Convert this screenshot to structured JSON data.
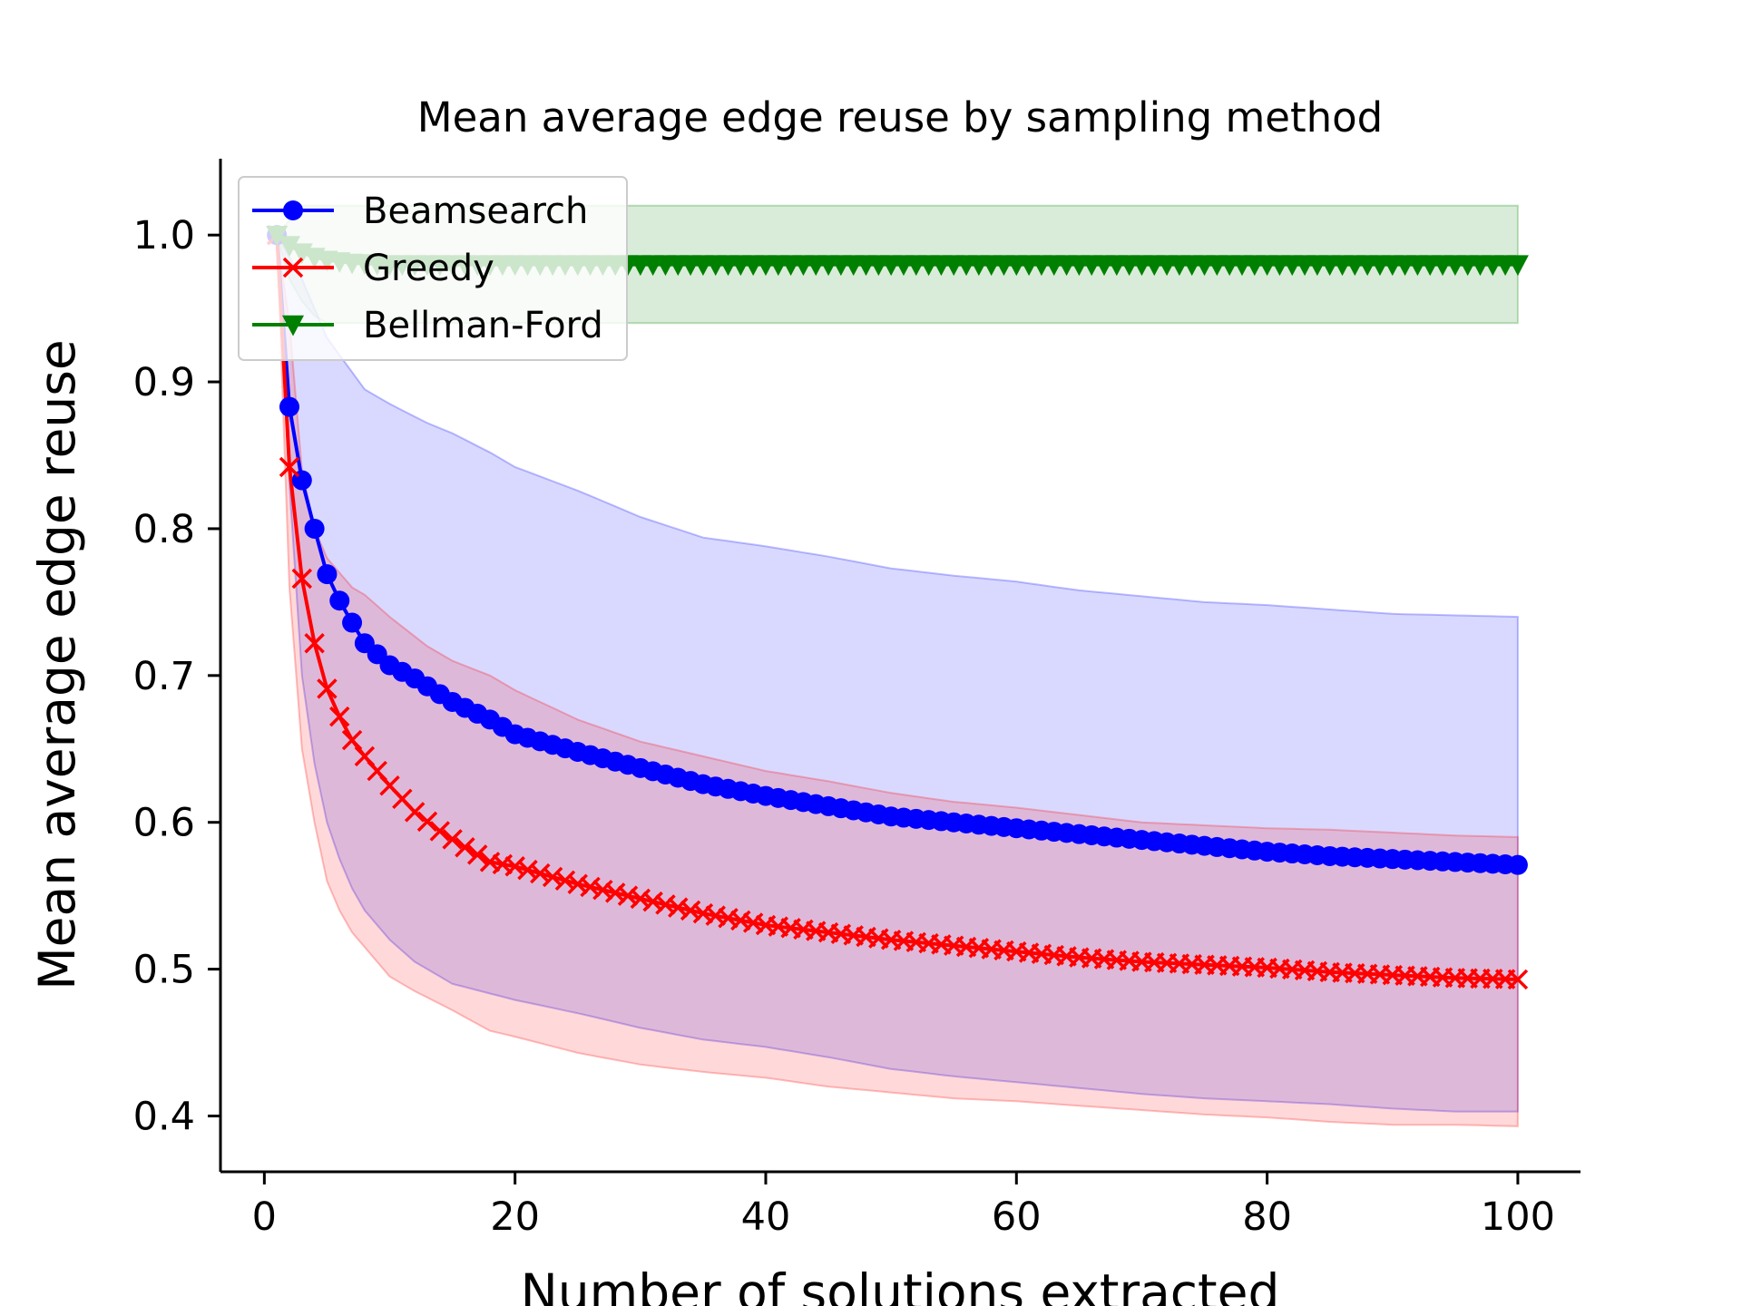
{
  "chart_data": {
    "type": "line",
    "title": "Mean average edge reuse by sampling method",
    "xlabel": "Number of solutions extracted",
    "ylabel": "Mean average edge reuse",
    "xlim": [
      -3.5,
      105
    ],
    "ylim": [
      0.362,
      1.052
    ],
    "xticks": [
      0,
      20,
      40,
      60,
      80,
      100
    ],
    "yticks": [
      0.4,
      0.5,
      0.6,
      0.7,
      0.8,
      0.9,
      1.0
    ],
    "xtick_labels": [
      "0",
      "20",
      "40",
      "60",
      "80",
      "100"
    ],
    "ytick_labels": [
      "0.4",
      "0.5",
      "0.6",
      "0.7",
      "0.8",
      "0.9",
      "1.0"
    ],
    "grid": false,
    "legend": "top-left",
    "x": {
      "start": 1,
      "end": 100
    },
    "series": [
      {
        "name": "Beamsearch",
        "color": "#0000ff",
        "marker": "circle",
        "mean_anchors": [
          [
            1,
            1.0
          ],
          [
            2,
            0.883
          ],
          [
            3,
            0.833
          ],
          [
            4,
            0.8
          ],
          [
            5,
            0.769
          ],
          [
            6,
            0.751
          ],
          [
            7,
            0.736
          ],
          [
            8,
            0.722
          ],
          [
            10,
            0.707
          ],
          [
            12,
            0.698
          ],
          [
            15,
            0.682
          ],
          [
            18,
            0.67
          ],
          [
            20,
            0.66
          ],
          [
            25,
            0.648
          ],
          [
            30,
            0.637
          ],
          [
            35,
            0.626
          ],
          [
            40,
            0.618
          ],
          [
            45,
            0.611
          ],
          [
            50,
            0.604
          ],
          [
            55,
            0.6
          ],
          [
            60,
            0.596
          ],
          [
            65,
            0.592
          ],
          [
            70,
            0.588
          ],
          [
            75,
            0.584
          ],
          [
            80,
            0.58
          ],
          [
            85,
            0.577
          ],
          [
            90,
            0.575
          ],
          [
            95,
            0.573
          ],
          [
            100,
            0.571
          ]
        ],
        "upper_anchors": [
          [
            1,
            1.0
          ],
          [
            3,
            0.97
          ],
          [
            5,
            0.93
          ],
          [
            8,
            0.895
          ],
          [
            10,
            0.885
          ],
          [
            13,
            0.872
          ],
          [
            15,
            0.865
          ],
          [
            18,
            0.852
          ],
          [
            20,
            0.842
          ],
          [
            25,
            0.826
          ],
          [
            30,
            0.808
          ],
          [
            35,
            0.794
          ],
          [
            40,
            0.788
          ],
          [
            45,
            0.781
          ],
          [
            50,
            0.773
          ],
          [
            55,
            0.768
          ],
          [
            60,
            0.764
          ],
          [
            65,
            0.758
          ],
          [
            70,
            0.754
          ],
          [
            75,
            0.75
          ],
          [
            80,
            0.748
          ],
          [
            85,
            0.745
          ],
          [
            90,
            0.742
          ],
          [
            95,
            0.741
          ],
          [
            100,
            0.74
          ]
        ],
        "lower_anchors": [
          [
            1,
            1.0
          ],
          [
            2,
            0.83
          ],
          [
            3,
            0.7
          ],
          [
            4,
            0.64
          ],
          [
            5,
            0.6
          ],
          [
            6,
            0.575
          ],
          [
            7,
            0.555
          ],
          [
            8,
            0.54
          ],
          [
            10,
            0.52
          ],
          [
            12,
            0.505
          ],
          [
            15,
            0.49
          ],
          [
            20,
            0.479
          ],
          [
            25,
            0.47
          ],
          [
            30,
            0.46
          ],
          [
            35,
            0.452
          ],
          [
            40,
            0.447
          ],
          [
            45,
            0.44
          ],
          [
            50,
            0.432
          ],
          [
            55,
            0.427
          ],
          [
            60,
            0.423
          ],
          [
            65,
            0.419
          ],
          [
            70,
            0.415
          ],
          [
            75,
            0.412
          ],
          [
            80,
            0.41
          ],
          [
            85,
            0.408
          ],
          [
            90,
            0.405
          ],
          [
            95,
            0.403
          ],
          [
            100,
            0.403
          ]
        ]
      },
      {
        "name": "Greedy",
        "color": "#ff0000",
        "marker": "x",
        "mean_anchors": [
          [
            1,
            1.0
          ],
          [
            2,
            0.842
          ],
          [
            3,
            0.766
          ],
          [
            4,
            0.722
          ],
          [
            5,
            0.691
          ],
          [
            6,
            0.672
          ],
          [
            7,
            0.656
          ],
          [
            8,
            0.645
          ],
          [
            10,
            0.625
          ],
          [
            12,
            0.607
          ],
          [
            14,
            0.594
          ],
          [
            16,
            0.583
          ],
          [
            18,
            0.573
          ],
          [
            20,
            0.57
          ],
          [
            25,
            0.558
          ],
          [
            30,
            0.548
          ],
          [
            35,
            0.538
          ],
          [
            40,
            0.53
          ],
          [
            45,
            0.525
          ],
          [
            50,
            0.52
          ],
          [
            55,
            0.516
          ],
          [
            60,
            0.512
          ],
          [
            65,
            0.508
          ],
          [
            70,
            0.505
          ],
          [
            75,
            0.503
          ],
          [
            80,
            0.501
          ],
          [
            85,
            0.498
          ],
          [
            90,
            0.496
          ],
          [
            95,
            0.494
          ],
          [
            100,
            0.493
          ]
        ],
        "upper_anchors": [
          [
            1,
            1.0
          ],
          [
            2,
            0.94
          ],
          [
            3,
            0.84
          ],
          [
            4,
            0.8
          ],
          [
            5,
            0.78
          ],
          [
            6,
            0.77
          ],
          [
            7,
            0.76
          ],
          [
            8,
            0.755
          ],
          [
            10,
            0.74
          ],
          [
            13,
            0.72
          ],
          [
            15,
            0.71
          ],
          [
            18,
            0.7
          ],
          [
            20,
            0.69
          ],
          [
            25,
            0.67
          ],
          [
            30,
            0.655
          ],
          [
            35,
            0.645
          ],
          [
            40,
            0.635
          ],
          [
            45,
            0.628
          ],
          [
            50,
            0.62
          ],
          [
            55,
            0.614
          ],
          [
            60,
            0.61
          ],
          [
            65,
            0.605
          ],
          [
            70,
            0.6
          ],
          [
            75,
            0.598
          ],
          [
            80,
            0.596
          ],
          [
            85,
            0.595
          ],
          [
            90,
            0.593
          ],
          [
            95,
            0.591
          ],
          [
            100,
            0.59
          ]
        ],
        "lower_anchors": [
          [
            1,
            1.0
          ],
          [
            2,
            0.76
          ],
          [
            3,
            0.65
          ],
          [
            4,
            0.6
          ],
          [
            5,
            0.56
          ],
          [
            6,
            0.54
          ],
          [
            7,
            0.525
          ],
          [
            8,
            0.515
          ],
          [
            10,
            0.495
          ],
          [
            12,
            0.485
          ],
          [
            15,
            0.472
          ],
          [
            18,
            0.458
          ],
          [
            20,
            0.454
          ],
          [
            25,
            0.443
          ],
          [
            30,
            0.435
          ],
          [
            35,
            0.43
          ],
          [
            40,
            0.426
          ],
          [
            45,
            0.42
          ],
          [
            50,
            0.416
          ],
          [
            55,
            0.412
          ],
          [
            60,
            0.41
          ],
          [
            65,
            0.407
          ],
          [
            70,
            0.404
          ],
          [
            75,
            0.401
          ],
          [
            80,
            0.399
          ],
          [
            85,
            0.396
          ],
          [
            90,
            0.394
          ],
          [
            95,
            0.394
          ],
          [
            100,
            0.393
          ]
        ]
      },
      {
        "name": "Bellman-Ford",
        "color": "#008000",
        "marker": "triangle-down",
        "mean_anchors": [
          [
            1,
            1.0
          ],
          [
            2,
            0.993
          ],
          [
            3,
            0.988
          ],
          [
            4,
            0.985
          ],
          [
            5,
            0.983
          ],
          [
            7,
            0.981
          ],
          [
            10,
            0.98
          ],
          [
            100,
            0.98
          ]
        ],
        "upper_anchors": [
          [
            1,
            1.0
          ],
          [
            2,
            1.01
          ],
          [
            3,
            1.02
          ],
          [
            100,
            1.02
          ]
        ],
        "lower_anchors": [
          [
            1,
            1.0
          ],
          [
            2,
            0.97
          ],
          [
            3,
            0.955
          ],
          [
            4,
            0.945
          ],
          [
            5,
            0.94
          ],
          [
            100,
            0.94
          ]
        ]
      }
    ]
  }
}
